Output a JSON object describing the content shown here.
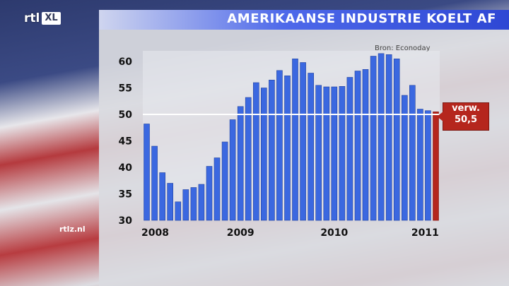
{
  "brand": {
    "logo_main": "rtl",
    "logo_sub": "XL",
    "site": "rtlz.nl"
  },
  "header": {
    "title": "AMERIKAANSE INDUSTRIE KOELT AF"
  },
  "chart_data": {
    "type": "bar",
    "source": "Bron: Econoday",
    "ylim": [
      30,
      62
    ],
    "y_ticks": [
      30,
      35,
      40,
      45,
      50,
      55,
      60
    ],
    "x_labels": [
      "2008",
      "2009",
      "2010",
      "2011"
    ],
    "values": [
      48.2,
      44.0,
      39.0,
      37.0,
      33.5,
      35.8,
      36.2,
      36.8,
      40.2,
      41.8,
      44.8,
      49.0,
      51.5,
      53.2,
      56.0,
      55.0,
      56.5,
      58.3,
      57.3,
      60.5,
      59.8,
      57.8,
      55.5,
      55.2,
      55.2,
      55.3,
      57.0,
      58.2,
      58.5,
      61.0,
      61.5,
      61.3,
      60.5,
      53.6,
      55.5,
      51.0,
      50.7,
      50.5
    ],
    "highlight": {
      "label_line1": "verw.",
      "label_line2": "50,5",
      "value": 50.5,
      "color": "#b5261d"
    },
    "reference_line": 50,
    "bar_color": "#3b68e0"
  }
}
